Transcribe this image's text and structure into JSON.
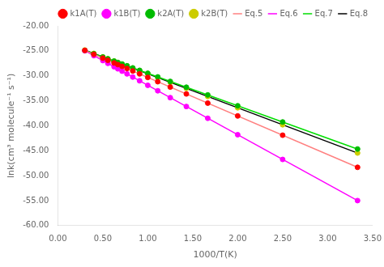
{
  "chart_data": {
    "type": "scatter",
    "xlabel": "1000/T(K)",
    "ylabel": "lnk(cm³ molecule⁻¹ s⁻¹)",
    "xlim": [
      0.0,
      3.5
    ],
    "ylim": [
      -60.0,
      -20.0
    ],
    "xticks": [
      {
        "value": 0.0,
        "label": "0.00"
      },
      {
        "value": 0.5,
        "label": "0.50"
      },
      {
        "value": 1.0,
        "label": "1.00"
      },
      {
        "value": 1.5,
        "label": "1.50"
      },
      {
        "value": 2.0,
        "label": "2.00"
      },
      {
        "value": 2.5,
        "label": "2.50"
      },
      {
        "value": 3.0,
        "label": "3.00"
      },
      {
        "value": 3.5,
        "label": "3.50"
      }
    ],
    "yticks": [
      {
        "value": -60.0,
        "label": "-60.00"
      },
      {
        "value": -55.0,
        "label": "-55.00"
      },
      {
        "value": -50.0,
        "label": "-50.00"
      },
      {
        "value": -45.0,
        "label": "-45.00"
      },
      {
        "value": -40.0,
        "label": "-40.00"
      },
      {
        "value": -35.0,
        "label": "-35.00"
      },
      {
        "value": -30.0,
        "label": "-30.00"
      },
      {
        "value": -25.0,
        "label": "-25.00"
      },
      {
        "value": -20.0,
        "label": "-20.00"
      }
    ],
    "grid": false,
    "legend": "upper right",
    "series": [
      {
        "name": "k1A(T)",
        "type": "scatter",
        "marker": "circle",
        "color": "#FF0000",
        "x": [
          0.3,
          0.4,
          0.5,
          0.556,
          0.625,
          0.667,
          0.714,
          0.769,
          0.833,
          0.909,
          1.0,
          1.111,
          1.25,
          1.429,
          1.667,
          2.0,
          2.5,
          3.333
        ],
        "values": [
          -24.916,
          -25.688,
          -26.46,
          -26.89232,
          -27.425,
          -27.74924,
          -28.11208,
          -28.53668,
          -29.03076,
          -29.61748,
          -30.32,
          -31.17692,
          -32.25,
          -33.63188,
          -35.46924,
          -38.04,
          -41.9,
          -48.33076
        ]
      },
      {
        "name": "k1B(T)",
        "type": "scatter",
        "marker": "circle",
        "color": "#FF00FF",
        "x": [
          0.3,
          0.4,
          0.5,
          0.556,
          0.625,
          0.667,
          0.714,
          0.769,
          0.833,
          0.909,
          1.0,
          1.111,
          1.25,
          1.429,
          1.667,
          2.0,
          2.5,
          3.333
        ],
        "values": [
          -24.97,
          -25.96,
          -26.95,
          -27.5044,
          -28.1875,
          -28.6033,
          -29.0686,
          -29.6131,
          -30.2467,
          -30.9991,
          -31.9,
          -32.9989,
          -34.375,
          -36.1471,
          -38.5033,
          -41.8,
          -46.75,
          -54.9967
        ]
      },
      {
        "name": "k2A(T)",
        "type": "scatter",
        "marker": "circle",
        "color": "#00BB00",
        "x": [
          0.3,
          0.4,
          0.5,
          0.556,
          0.625,
          0.667,
          0.714,
          0.769,
          0.833,
          0.909,
          1.0,
          1.111,
          1.25,
          1.429,
          1.667,
          2.0,
          2.5,
          3.333
        ],
        "values": [
          -24.95,
          -25.6,
          -26.25,
          -26.614,
          -27.0625,
          -27.3355,
          -27.641,
          -27.9985,
          -28.4145,
          -28.9085,
          -29.5,
          -30.2215,
          -31.125,
          -32.2885,
          -33.8355,
          -36.0,
          -39.25,
          -44.6645
        ]
      },
      {
        "name": "k2B(T)",
        "type": "scatter",
        "marker": "circle",
        "color": "#CCCC00",
        "x": [
          0.3,
          0.4,
          0.5,
          0.556,
          0.625,
          0.667,
          0.714,
          0.769,
          0.833,
          0.909,
          1.0,
          1.111,
          1.25,
          1.429,
          1.667,
          2.0,
          2.5,
          3.333
        ],
        "values": [
          -24.84,
          -25.52,
          -26.2,
          -26.5808,
          -27.05,
          -27.3356,
          -27.6552,
          -28.0292,
          -28.4644,
          -28.9812,
          -29.6,
          -30.3548,
          -31.3,
          -32.5172,
          -34.1356,
          -36.4,
          -39.8,
          -45.4644
        ]
      },
      {
        "name": "Eq.5",
        "type": "line",
        "line_style": "solid",
        "color": "#FF8080",
        "x": [
          0.3,
          3.333
        ],
        "values": [
          -24.916,
          -48.33076
        ]
      },
      {
        "name": "Eq.6",
        "type": "line",
        "line_style": "solid",
        "color": "#FF00FF",
        "x": [
          0.3,
          3.333
        ],
        "values": [
          -24.97,
          -54.9967
        ]
      },
      {
        "name": "Eq.7",
        "type": "line",
        "line_style": "solid",
        "color": "#00DD00",
        "x": [
          0.3,
          3.333
        ],
        "values": [
          -24.95,
          -44.6645
        ]
      },
      {
        "name": "Eq.8",
        "type": "line",
        "line_style": "solid",
        "color": "#000000",
        "x": [
          0.3,
          3.333
        ],
        "values": [
          -24.84,
          -45.4644
        ]
      }
    ]
  }
}
